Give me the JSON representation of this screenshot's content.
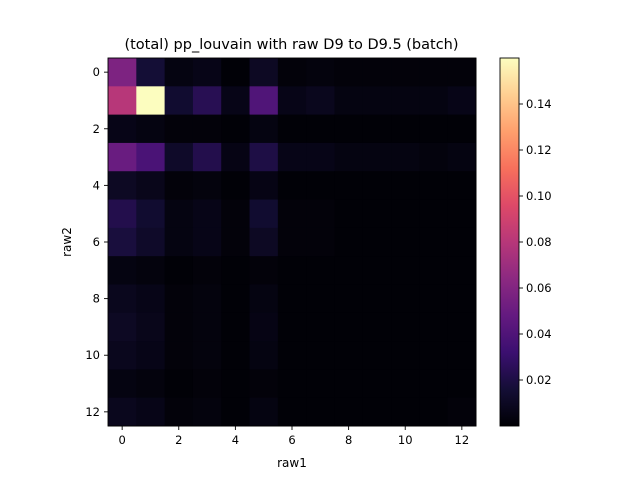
{
  "chart_data": {
    "type": "heatmap",
    "title": "(total) pp_louvain with raw D9 to D9.5 (batch)",
    "xlabel": "raw1",
    "ylabel": "raw2",
    "x": [
      0,
      1,
      2,
      3,
      4,
      5,
      6,
      7,
      8,
      9,
      10,
      11,
      12
    ],
    "y": [
      0,
      1,
      2,
      3,
      4,
      5,
      6,
      7,
      8,
      9,
      10,
      11,
      12
    ],
    "x_ticks": [
      0,
      2,
      4,
      6,
      8,
      10,
      12
    ],
    "y_ticks": [
      0,
      2,
      4,
      6,
      8,
      10,
      12
    ],
    "colormap": "magma",
    "vmin": 0.0,
    "vmax": 0.16,
    "colorbar_ticks": [
      0.02,
      0.04,
      0.06,
      0.08,
      0.1,
      0.12,
      0.14
    ],
    "colorbar_tick_labels": [
      "0.02",
      "0.04",
      "0.06",
      "0.08",
      "0.10",
      "0.12",
      "0.14"
    ],
    "values": [
      [
        0.058,
        0.016,
        0.004,
        0.006,
        0.001,
        0.01,
        0.002,
        0.003,
        0.002,
        0.002,
        0.002,
        0.002,
        0.002
      ],
      [
        0.08,
        0.16,
        0.014,
        0.024,
        0.006,
        0.04,
        0.006,
        0.008,
        0.004,
        0.004,
        0.004,
        0.004,
        0.006
      ],
      [
        0.006,
        0.004,
        0.002,
        0.002,
        0.001,
        0.004,
        0.001,
        0.001,
        0.001,
        0.001,
        0.001,
        0.001,
        0.001
      ],
      [
        0.05,
        0.038,
        0.012,
        0.022,
        0.005,
        0.02,
        0.006,
        0.006,
        0.004,
        0.004,
        0.004,
        0.003,
        0.004
      ],
      [
        0.01,
        0.007,
        0.002,
        0.003,
        0.001,
        0.005,
        0.001,
        0.001,
        0.001,
        0.001,
        0.001,
        0.001,
        0.001
      ],
      [
        0.022,
        0.014,
        0.004,
        0.006,
        0.002,
        0.014,
        0.002,
        0.002,
        0.001,
        0.001,
        0.001,
        0.001,
        0.001
      ],
      [
        0.018,
        0.012,
        0.004,
        0.006,
        0.002,
        0.01,
        0.002,
        0.002,
        0.001,
        0.001,
        0.001,
        0.001,
        0.001
      ],
      [
        0.004,
        0.003,
        0.001,
        0.002,
        0.001,
        0.002,
        0.001,
        0.001,
        0.001,
        0.001,
        0.001,
        0.001,
        0.001
      ],
      [
        0.008,
        0.006,
        0.002,
        0.003,
        0.001,
        0.004,
        0.001,
        0.001,
        0.001,
        0.001,
        0.001,
        0.001,
        0.001
      ],
      [
        0.01,
        0.007,
        0.002,
        0.003,
        0.001,
        0.005,
        0.001,
        0.001,
        0.001,
        0.001,
        0.001,
        0.001,
        0.001
      ],
      [
        0.008,
        0.006,
        0.002,
        0.003,
        0.001,
        0.004,
        0.001,
        0.001,
        0.001,
        0.001,
        0.001,
        0.001,
        0.001
      ],
      [
        0.004,
        0.003,
        0.001,
        0.002,
        0.001,
        0.002,
        0.001,
        0.001,
        0.001,
        0.001,
        0.001,
        0.001,
        0.001
      ],
      [
        0.008,
        0.006,
        0.002,
        0.003,
        0.001,
        0.004,
        0.001,
        0.001,
        0.001,
        0.001,
        0.001,
        0.001,
        0.002
      ]
    ]
  }
}
